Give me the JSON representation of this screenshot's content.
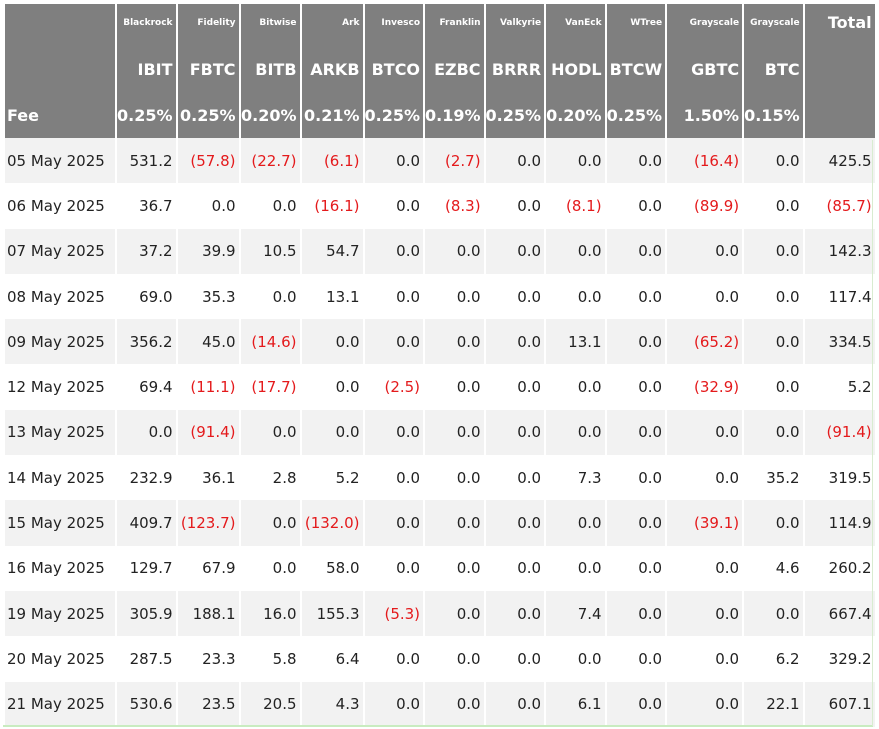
{
  "table": {
    "fee_label": "Fee",
    "total_label": "Total",
    "columns": [
      {
        "issuer": "Blackrock",
        "ticker": "IBIT",
        "fee": "0.25%"
      },
      {
        "issuer": "Fidelity",
        "ticker": "FBTC",
        "fee": "0.25%"
      },
      {
        "issuer": "Bitwise",
        "ticker": "BITB",
        "fee": "0.20%"
      },
      {
        "issuer": "Ark",
        "ticker": "ARKB",
        "fee": "0.21%"
      },
      {
        "issuer": "Invesco",
        "ticker": "BTCO",
        "fee": "0.25%"
      },
      {
        "issuer": "Franklin",
        "ticker": "EZBC",
        "fee": "0.19%"
      },
      {
        "issuer": "Valkyrie",
        "ticker": "BRRR",
        "fee": "0.25%"
      },
      {
        "issuer": "VanEck",
        "ticker": "HODL",
        "fee": "0.20%"
      },
      {
        "issuer": "WTree",
        "ticker": "BTCW",
        "fee": "0.25%"
      },
      {
        "issuer": "Grayscale",
        "ticker": "GBTC",
        "fee": "1.50%"
      },
      {
        "issuer": "Grayscale",
        "ticker": "BTC",
        "fee": "0.15%"
      }
    ],
    "rows": [
      {
        "date": "05 May 2025",
        "values": [
          "531.2",
          "(57.8)",
          "(22.7)",
          "(6.1)",
          "0.0",
          "(2.7)",
          "0.0",
          "0.0",
          "0.0",
          "(16.4)",
          "0.0"
        ],
        "total": "425.5"
      },
      {
        "date": "06 May 2025",
        "values": [
          "36.7",
          "0.0",
          "0.0",
          "(16.1)",
          "0.0",
          "(8.3)",
          "0.0",
          "(8.1)",
          "0.0",
          "(89.9)",
          "0.0"
        ],
        "total": "(85.7)"
      },
      {
        "date": "07 May 2025",
        "values": [
          "37.2",
          "39.9",
          "10.5",
          "54.7",
          "0.0",
          "0.0",
          "0.0",
          "0.0",
          "0.0",
          "0.0",
          "0.0"
        ],
        "total": "142.3"
      },
      {
        "date": "08 May 2025",
        "values": [
          "69.0",
          "35.3",
          "0.0",
          "13.1",
          "0.0",
          "0.0",
          "0.0",
          "0.0",
          "0.0",
          "0.0",
          "0.0"
        ],
        "total": "117.4"
      },
      {
        "date": "09 May 2025",
        "values": [
          "356.2",
          "45.0",
          "(14.6)",
          "0.0",
          "0.0",
          "0.0",
          "0.0",
          "13.1",
          "0.0",
          "(65.2)",
          "0.0"
        ],
        "total": "334.5"
      },
      {
        "date": "12 May 2025",
        "values": [
          "69.4",
          "(11.1)",
          "(17.7)",
          "0.0",
          "(2.5)",
          "0.0",
          "0.0",
          "0.0",
          "0.0",
          "(32.9)",
          "0.0"
        ],
        "total": "5.2"
      },
      {
        "date": "13 May 2025",
        "values": [
          "0.0",
          "(91.4)",
          "0.0",
          "0.0",
          "0.0",
          "0.0",
          "0.0",
          "0.0",
          "0.0",
          "0.0",
          "0.0"
        ],
        "total": "(91.4)"
      },
      {
        "date": "14 May 2025",
        "values": [
          "232.9",
          "36.1",
          "2.8",
          "5.2",
          "0.0",
          "0.0",
          "0.0",
          "7.3",
          "0.0",
          "0.0",
          "35.2"
        ],
        "total": "319.5"
      },
      {
        "date": "15 May 2025",
        "values": [
          "409.7",
          "(123.7)",
          "0.0",
          "(132.0)",
          "0.0",
          "0.0",
          "0.0",
          "0.0",
          "0.0",
          "(39.1)",
          "0.0"
        ],
        "total": "114.9"
      },
      {
        "date": "16 May 2025",
        "values": [
          "129.7",
          "67.9",
          "0.0",
          "58.0",
          "0.0",
          "0.0",
          "0.0",
          "0.0",
          "0.0",
          "0.0",
          "4.6"
        ],
        "total": "260.2"
      },
      {
        "date": "19 May 2025",
        "values": [
          "305.9",
          "188.1",
          "16.0",
          "155.3",
          "(5.3)",
          "0.0",
          "0.0",
          "7.4",
          "0.0",
          "0.0",
          "0.0"
        ],
        "total": "667.4"
      },
      {
        "date": "20 May 2025",
        "values": [
          "287.5",
          "23.3",
          "5.8",
          "6.4",
          "0.0",
          "0.0",
          "0.0",
          "0.0",
          "0.0",
          "0.0",
          "6.2"
        ],
        "total": "329.2"
      },
      {
        "date": "21 May 2025",
        "values": [
          "530.6",
          "23.5",
          "20.5",
          "4.3",
          "0.0",
          "0.0",
          "0.0",
          "6.1",
          "0.0",
          "0.0",
          "22.1"
        ],
        "total": "607.1"
      }
    ],
    "colors": {
      "header_bg": "#7f7f7f",
      "header_text": "#ffffff",
      "negative": "#e41a1c",
      "stripe": "#f2f2f2"
    }
  }
}
